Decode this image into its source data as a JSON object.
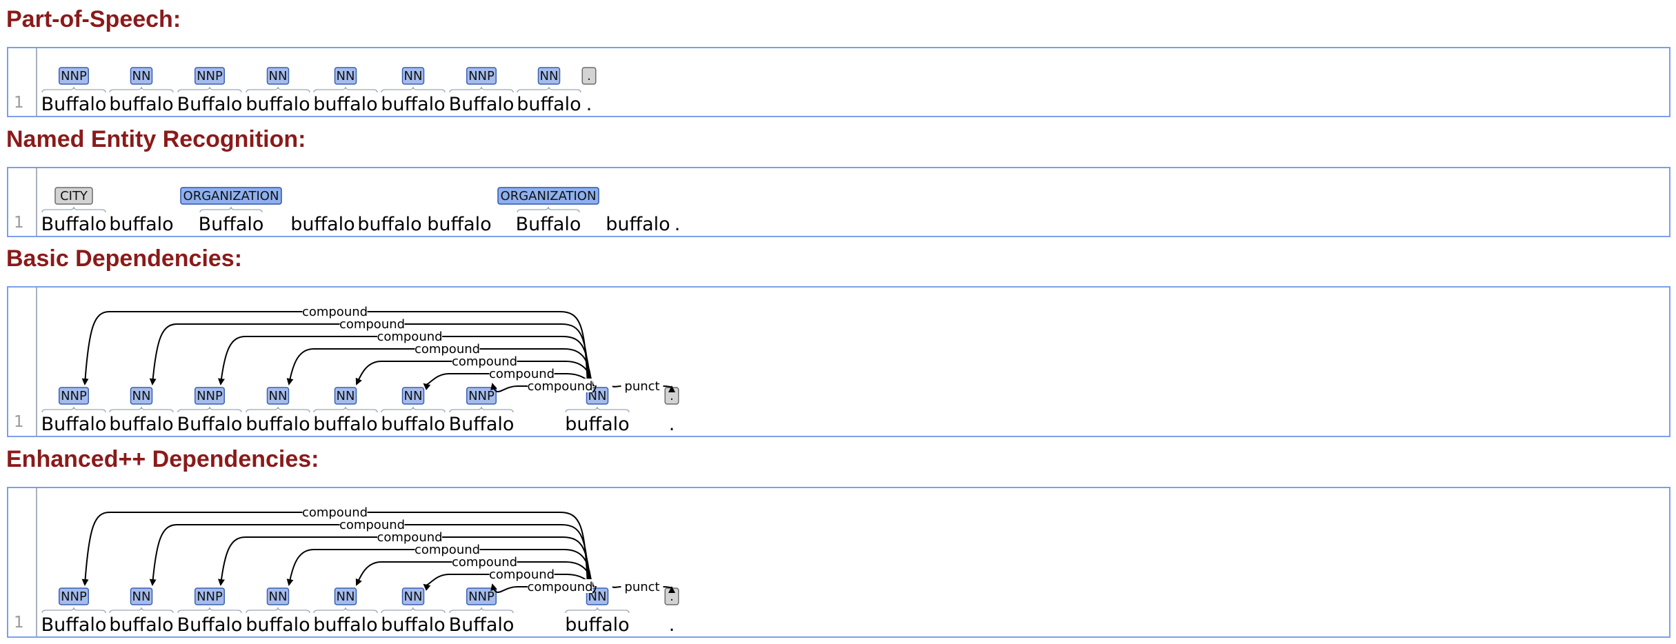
{
  "sections": [
    {
      "key": "pos",
      "title": "Part-of-Speech:",
      "line_number": "1",
      "tokens": [
        "Buffalo",
        "buffalo",
        "Buffalo",
        "buffalo",
        "buffalo",
        "buffalo",
        "Buffalo",
        "buffalo",
        "."
      ],
      "tags": [
        "NNP",
        "NN",
        "NNP",
        "NN",
        "NN",
        "NN",
        "NNP",
        "NN",
        "."
      ]
    },
    {
      "key": "ner",
      "title": "Named Entity Recognition:",
      "line_number": "1",
      "tokens": [
        "Buffalo",
        "buffalo",
        "Buffalo",
        "buffalo",
        "buffalo",
        "buffalo",
        "Buffalo",
        "buffalo",
        "."
      ],
      "entities": [
        {
          "token": 0,
          "label": "CITY",
          "kind": "ne"
        },
        {
          "token": 2,
          "label": "ORGANIZATION",
          "kind": "org"
        },
        {
          "token": 6,
          "label": "ORGANIZATION",
          "kind": "org"
        }
      ]
    },
    {
      "key": "basic",
      "title": "Basic Dependencies:",
      "line_number": "1",
      "tokens": [
        "Buffalo",
        "buffalo",
        "Buffalo",
        "buffalo",
        "buffalo",
        "buffalo",
        "Buffalo",
        "buffalo",
        "."
      ],
      "tags": [
        "NNP",
        "NN",
        "NNP",
        "NN",
        "NN",
        "NN",
        "NNP",
        "NN",
        "."
      ],
      "arcs": [
        {
          "head": 7,
          "dep": 0,
          "label": "compound"
        },
        {
          "head": 7,
          "dep": 1,
          "label": "compound"
        },
        {
          "head": 7,
          "dep": 2,
          "label": "compound"
        },
        {
          "head": 7,
          "dep": 3,
          "label": "compound"
        },
        {
          "head": 7,
          "dep": 4,
          "label": "compound"
        },
        {
          "head": 7,
          "dep": 5,
          "label": "compound"
        },
        {
          "head": 7,
          "dep": 6,
          "label": "compound"
        },
        {
          "head": 7,
          "dep": 8,
          "label": "punct"
        }
      ]
    },
    {
      "key": "enhanced",
      "title": "Enhanced++ Dependencies:",
      "line_number": "1",
      "tokens": [
        "Buffalo",
        "buffalo",
        "Buffalo",
        "buffalo",
        "buffalo",
        "buffalo",
        "Buffalo",
        "buffalo",
        "."
      ],
      "tags": [
        "NNP",
        "NN",
        "NNP",
        "NN",
        "NN",
        "NN",
        "NNP",
        "NN",
        "."
      ],
      "arcs": [
        {
          "head": 7,
          "dep": 0,
          "label": "compound"
        },
        {
          "head": 7,
          "dep": 1,
          "label": "compound"
        },
        {
          "head": 7,
          "dep": 2,
          "label": "compound"
        },
        {
          "head": 7,
          "dep": 3,
          "label": "compound"
        },
        {
          "head": 7,
          "dep": 4,
          "label": "compound"
        },
        {
          "head": 7,
          "dep": 5,
          "label": "compound"
        },
        {
          "head": 7,
          "dep": 6,
          "label": "compound"
        },
        {
          "head": 7,
          "dep": 8,
          "label": "punct"
        }
      ]
    }
  ]
}
